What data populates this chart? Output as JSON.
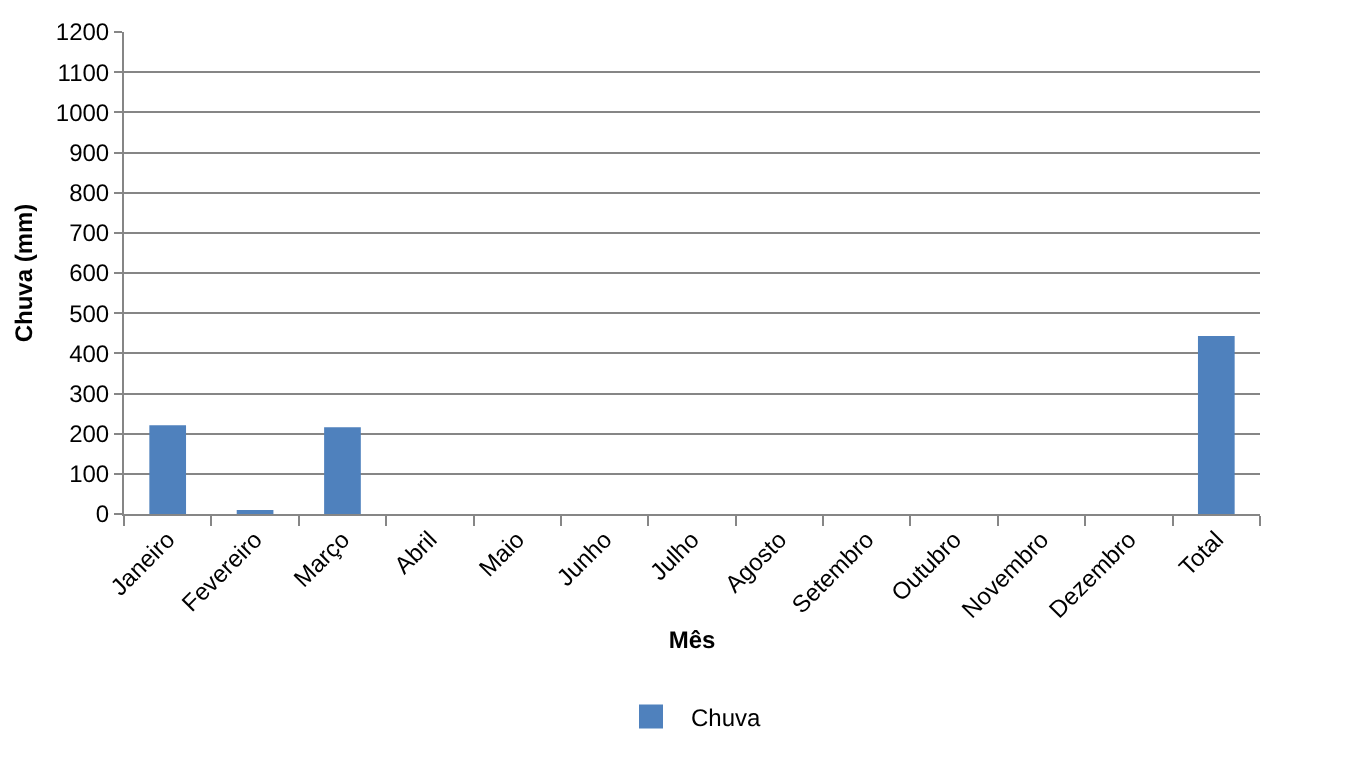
{
  "chart_data": {
    "type": "bar",
    "xlabel": "Mês",
    "ylabel": "Chuva (mm)",
    "categories": [
      "Janeiro",
      "Fevereiro",
      "Março",
      "Abril",
      "Maio",
      "Junho",
      "Julho",
      "Agosto",
      "Setembro",
      "Outubro",
      "Novembro",
      "Dezembro",
      "Total"
    ],
    "series": [
      {
        "name": "Chuva",
        "color": "#4f81bd",
        "values": [
          221,
          6,
          216,
          0,
          0,
          0,
          0,
          0,
          0,
          0,
          0,
          0,
          443
        ]
      }
    ],
    "ylim": [
      0,
      1200
    ],
    "yticks": [
      0,
      100,
      200,
      300,
      400,
      500,
      600,
      700,
      800,
      900,
      1000,
      1100,
      1200
    ],
    "grid": "y",
    "legend": "bottom"
  }
}
